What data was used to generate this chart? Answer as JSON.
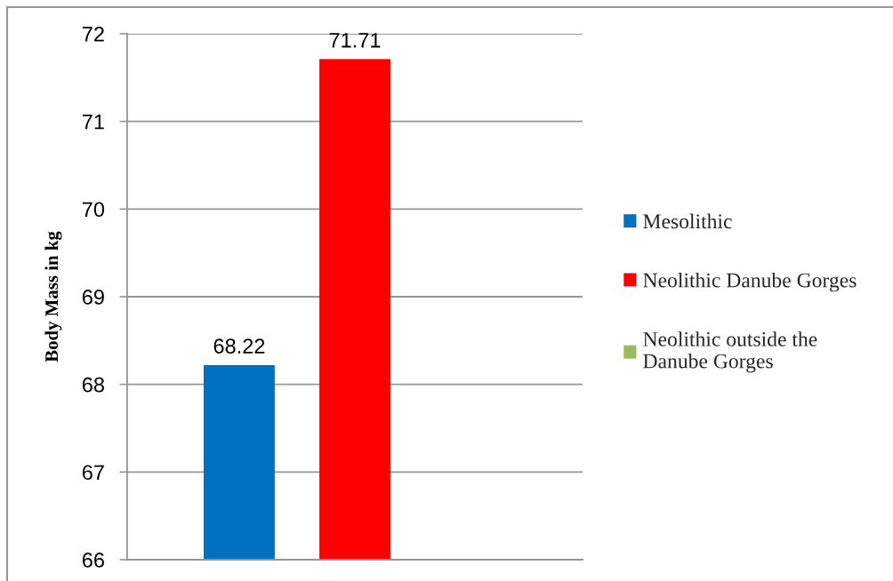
{
  "chart_data": {
    "type": "bar",
    "categories": [
      null
    ],
    "ylabel": "Body Mass in kg",
    "series": [
      {
        "name": "Mesolithic",
        "color": "#0070c0",
        "values": [
          68.22
        ]
      },
      {
        "name": "Neolithic Danube Gorges",
        "color": "#ff0000",
        "values": [
          71.71
        ]
      },
      {
        "name": "Neolithic outside the Danube Gorges",
        "color": "#9bbb59",
        "values": [
          null
        ]
      }
    ],
    "ylim": [
      66,
      72
    ],
    "yticks": [
      66,
      67,
      68,
      69,
      70,
      71,
      72
    ],
    "grid": "y",
    "legend": "right",
    "tick_labels": "y",
    "data_labels": true
  }
}
